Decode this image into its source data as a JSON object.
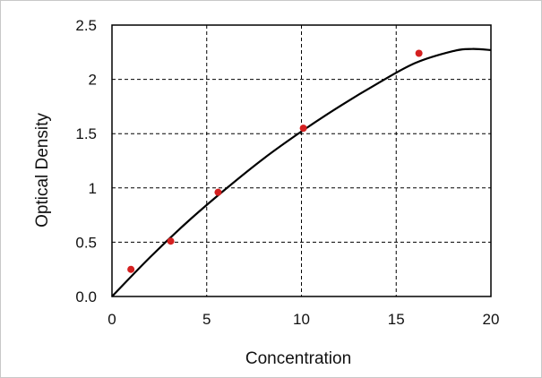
{
  "chart_data": {
    "type": "scatter",
    "title": "",
    "xlabel": "Concentration",
    "ylabel": "Optical Density",
    "xlim": [
      0,
      20
    ],
    "ylim": [
      0,
      2.5
    ],
    "x_ticks": [
      "0",
      "5",
      "10",
      "15",
      "20"
    ],
    "y_ticks": [
      "0.0",
      "0.5",
      "1",
      "1.5",
      "2",
      "2.5"
    ],
    "grid": "dashed",
    "legend": "none",
    "points": [
      {
        "x": 1.0,
        "y": 0.25
      },
      {
        "x": 3.1,
        "y": 0.51
      },
      {
        "x": 5.6,
        "y": 0.96
      },
      {
        "x": 10.1,
        "y": 1.55
      },
      {
        "x": 16.2,
        "y": 2.24
      }
    ],
    "fit_curve": {
      "x": [
        0,
        2,
        4,
        6,
        8,
        10,
        12,
        14,
        16,
        18,
        19,
        20
      ],
      "y": [
        0.0,
        0.36,
        0.69,
        0.99,
        1.27,
        1.52,
        1.75,
        1.96,
        2.15,
        2.26,
        2.28,
        2.27
      ]
    },
    "colors": {
      "point": "#d42020",
      "curve": "#000000",
      "grid": "#000000"
    }
  }
}
